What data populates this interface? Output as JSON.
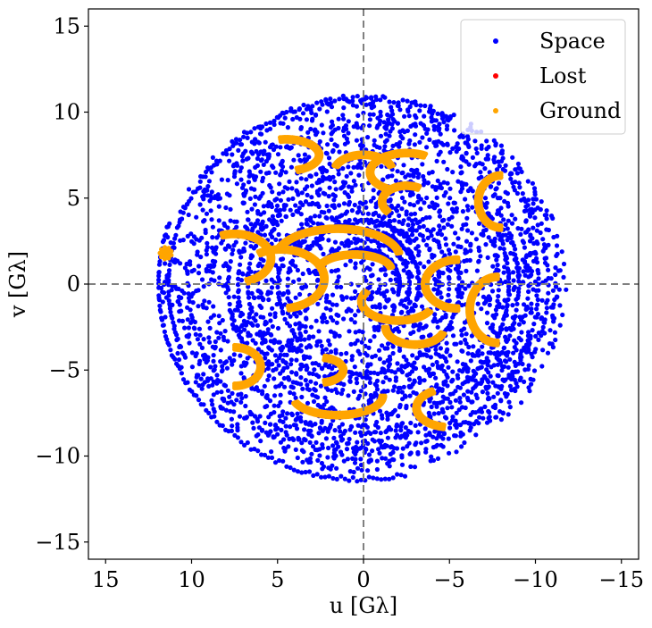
{
  "chart_data": {
    "type": "scatter",
    "xlabel": "u [Gλ]",
    "ylabel": "v [Gλ]",
    "xlim": [
      16,
      -16
    ],
    "ylim": [
      -16,
      16
    ],
    "xticks": [
      15,
      10,
      5,
      0,
      -5,
      -10,
      -15
    ],
    "yticks": [
      15,
      10,
      5,
      0,
      -5,
      -10,
      -15
    ],
    "xtick_labels": [
      "15",
      "10",
      "5",
      "0",
      "−5",
      "−10",
      "−15"
    ],
    "ytick_labels": [
      "15",
      "10",
      "5",
      "0",
      "−5",
      "−10",
      "−15"
    ],
    "zero_lines": {
      "style": "dashed",
      "color": "#808080"
    },
    "grid": false,
    "legend_position": "top-right",
    "series": [
      {
        "name": "Space",
        "color": "#0000ff",
        "distribution": "dense cloud of points filling an ellipse of radius about 12 in u and 11 in v, centered at the origin, with denser concentric arcs"
      },
      {
        "name": "Lost",
        "color": "#ff0000",
        "distribution": "no visible points"
      },
      {
        "name": "Ground",
        "color": "#ffa500",
        "arcs": [
          {
            "center": [
              4.5,
              7.5
            ],
            "rx": 1.8,
            "ry": 0.8,
            "from": 80,
            "to": 250
          },
          {
            "center": [
              -2.5,
              6.5
            ],
            "rx": 2.0,
            "ry": 1.0,
            "from": -60,
            "to": 120
          },
          {
            "center": [
              -2.5,
              4.8
            ],
            "rx": 1.3,
            "ry": 0.8,
            "from": -40,
            "to": 120
          },
          {
            "center": [
              -8.0,
              4.8
            ],
            "rx": 1.2,
            "ry": 1.4,
            "from": -90,
            "to": 90
          },
          {
            "center": [
              0.0,
              6.5
            ],
            "rx": 1.6,
            "ry": 0.9,
            "from": 20,
            "to": 160
          },
          {
            "center": [
              7.5,
              1.5
            ],
            "rx": 2.0,
            "ry": 1.3,
            "from": 70,
            "to": 250
          },
          {
            "center": [
              4.8,
              0.3
            ],
            "rx": 2.4,
            "ry": 1.6,
            "from": 60,
            "to": 260
          },
          {
            "center": [
              1.5,
              1.5
            ],
            "rx": 3.5,
            "ry": 1.6,
            "from": 20,
            "to": 170
          },
          {
            "center": [
              0.5,
              0.8
            ],
            "rx": 2.0,
            "ry": 0.8,
            "from": 20,
            "to": 170
          },
          {
            "center": [
              -2.0,
              -1.0
            ],
            "rx": 2.0,
            "ry": 1.0,
            "from": -150,
            "to": 30
          },
          {
            "center": [
              -5.5,
              0.0
            ],
            "rx": 1.8,
            "ry": 1.3,
            "from": -90,
            "to": 90
          },
          {
            "center": [
              -7.8,
              -1.5
            ],
            "rx": 1.5,
            "ry": 1.8,
            "from": -90,
            "to": 90
          },
          {
            "center": [
              7.5,
              -4.8
            ],
            "rx": 1.4,
            "ry": 1.0,
            "from": 90,
            "to": 270
          },
          {
            "center": [
              2.5,
              -5.0
            ],
            "rx": 1.2,
            "ry": 0.6,
            "from": 100,
            "to": 260
          },
          {
            "center": [
              1.5,
              -6.5
            ],
            "rx": 2.5,
            "ry": 1.0,
            "from": 180,
            "to": 340
          },
          {
            "center": [
              -5.0,
              -7.2
            ],
            "rx": 1.8,
            "ry": 1.0,
            "from": -80,
            "to": 60
          },
          {
            "center": [
              -3.0,
              -2.5
            ],
            "rx": 1.6,
            "ry": 0.9,
            "from": -160,
            "to": 0
          },
          {
            "center": [
              11.5,
              1.8
            ],
            "rx": 0.1,
            "ry": 0.1,
            "from": 0,
            "to": 360
          }
        ]
      }
    ]
  }
}
